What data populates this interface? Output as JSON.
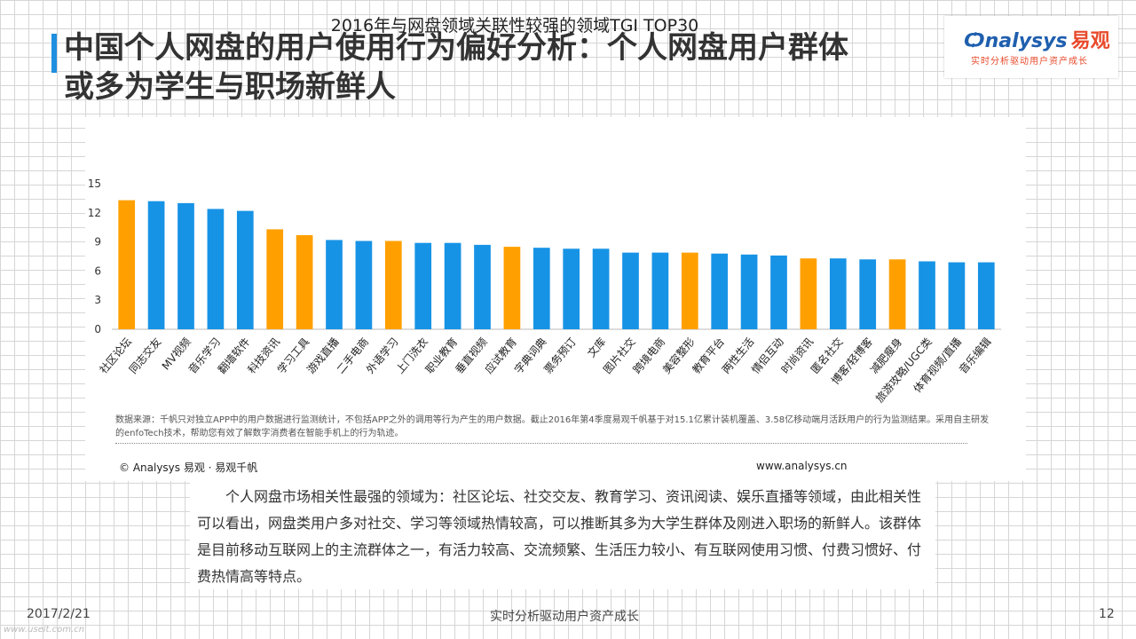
{
  "header": {
    "title_line1": "中国个人网盘的用户使用行为偏好分析：个人网盘用户群体",
    "title_line2": "或多为学生与职场新鲜人"
  },
  "logo": {
    "brand": "nalysys",
    "brand_cn": "易观",
    "slogan": "实时分析驱动用户资产成长"
  },
  "colors": {
    "highlight": "#ffa000",
    "normal": "#1793e6",
    "title_bar": "#1f8fe0"
  },
  "chart_data": {
    "type": "bar",
    "title": "2016年与网盘领域关联性较强的领域TGI TOP30",
    "ylim": [
      0,
      15
    ],
    "yticks": [
      0,
      3,
      6,
      9,
      12,
      15
    ],
    "categories": [
      "社区论坛",
      "同志交友",
      "MV视频",
      "音乐学习",
      "翻墙软件",
      "科技资讯",
      "学习工具",
      "游戏直播",
      "二手电商",
      "外语学习",
      "上门洗衣",
      "职业教育",
      "垂直视频",
      "应试教育",
      "字典词典",
      "票务预订",
      "文库",
      "图片社交",
      "跨境电商",
      "美容整形",
      "教育平台",
      "两性生活",
      "情侣互动",
      "时尚资讯",
      "匿名社交",
      "博客/轻博客",
      "减肥瘦身",
      "旅游攻略/UGC类",
      "体育视频/直播",
      "音乐编辑"
    ],
    "values": [
      13.3,
      13.2,
      13.0,
      12.4,
      12.2,
      10.3,
      9.7,
      9.2,
      9.1,
      9.1,
      8.9,
      8.9,
      8.7,
      8.5,
      8.4,
      8.3,
      8.3,
      7.9,
      7.9,
      7.9,
      7.8,
      7.7,
      7.6,
      7.3,
      7.3,
      7.2,
      7.2,
      7.0,
      6.9,
      6.9
    ],
    "highlighted": [
      0,
      5,
      6,
      9,
      13,
      19,
      23,
      26
    ],
    "grid": false
  },
  "notes": {
    "source": "数据来源：千帆只对独立APP中的用户数据进行监测统计，不包括APP之外的调用等行为产生的用户数据。截止2016年第4季度易观千帆基于对15.1亿累计装机覆盖、3.58亿移动端月活跃用户的行为监测结果。采用自主研发的enfoTech技术，帮助您有效了解数字消费者在智能手机上的行为轨迹。",
    "copyright": "© Analysys 易观 · 易观千帆",
    "website": "www.analysys.cn"
  },
  "summary": "个人网盘市场相关性最强的领域为：社区论坛、社交交友、教育学习、资讯阅读、娱乐直播等领域，由此相关性可以看出，网盘类用户多对社交、学习等领域热情较高，可以推断其多为大学生群体及刚进入职场的新鲜人。该群体是目前移动互联网上的主流群体之一，有活力较高、交流频繁、生活压力较小、有互联网使用习惯、付费习惯好、付费热情高等特点。",
  "footer": {
    "date": "2017/2/21",
    "slogan": "实时分析驱动用户资产成长",
    "page": "12",
    "watermark": "www.useit.com.cn"
  }
}
